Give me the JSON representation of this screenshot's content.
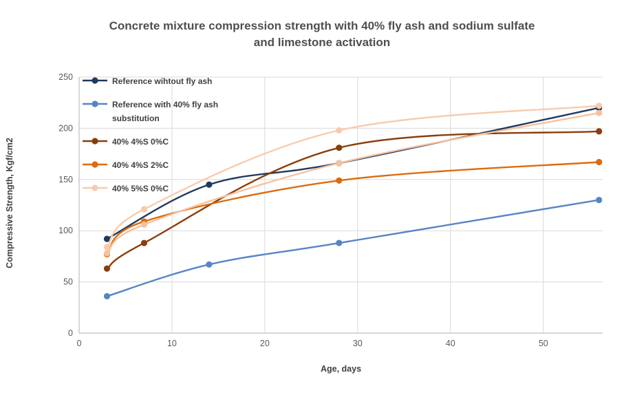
{
  "chart_data": {
    "type": "line",
    "title": "Concrete mixture compression strength with 40% fly ash and sodium sulfate and limestone activation",
    "title_lines": {
      "0": "Concrete mixture compression strength with 40% fly ash and sodium sulfate",
      "1": "and limestone activation"
    },
    "xlabel": "Age, days",
    "ylabel": "Compressive Strength, Kgf/cm2",
    "xlim": [
      0,
      56.4
    ],
    "ylim": [
      0,
      250
    ],
    "x_ticks": [
      0,
      10,
      20,
      30,
      40,
      50
    ],
    "y_ticks": [
      0,
      50,
      100,
      150,
      200,
      250
    ],
    "grid": true,
    "legend_position": "top-left-inside",
    "smooth_lines": true,
    "colors": {
      "grid": "#d9d9d9",
      "axis": "#bfbfbf",
      "tick_label": "#595959",
      "title_text": "#4f4f4f",
      "axis_title_text": "#404040"
    },
    "series": [
      {
        "name": "Reference wihtout fly ash",
        "color": "#1f3a5f",
        "in_legend": true,
        "x": [
          3,
          14,
          28,
          56
        ],
        "values": [
          92,
          145,
          166,
          220
        ]
      },
      {
        "name": "Reference with 40% fly ash substitution",
        "color": "#5585c5",
        "in_legend": true,
        "x": [
          3,
          14,
          28,
          56
        ],
        "values": [
          36,
          67,
          88,
          130
        ]
      },
      {
        "name": "40% 4%S 0%C",
        "color": "#8a3e0b",
        "in_legend": true,
        "x": [
          3,
          7,
          28,
          56
        ],
        "values": [
          63,
          88,
          181,
          197
        ]
      },
      {
        "name": "40% 4%S 2%C",
        "color": "#dd6b0d",
        "in_legend": true,
        "x": [
          3,
          7,
          28,
          56
        ],
        "values": [
          77,
          109,
          149,
          167
        ]
      },
      {
        "name": "",
        "color": "#f6c29d",
        "in_legend": false,
        "x": [
          3,
          7,
          28,
          56
        ],
        "values": [
          78,
          106,
          166,
          215
        ]
      },
      {
        "name": "40% 5%S 0%C",
        "color": "#f8cbad",
        "in_legend": true,
        "x": [
          3,
          7,
          28,
          56
        ],
        "values": [
          84,
          121,
          198,
          222
        ]
      }
    ]
  }
}
